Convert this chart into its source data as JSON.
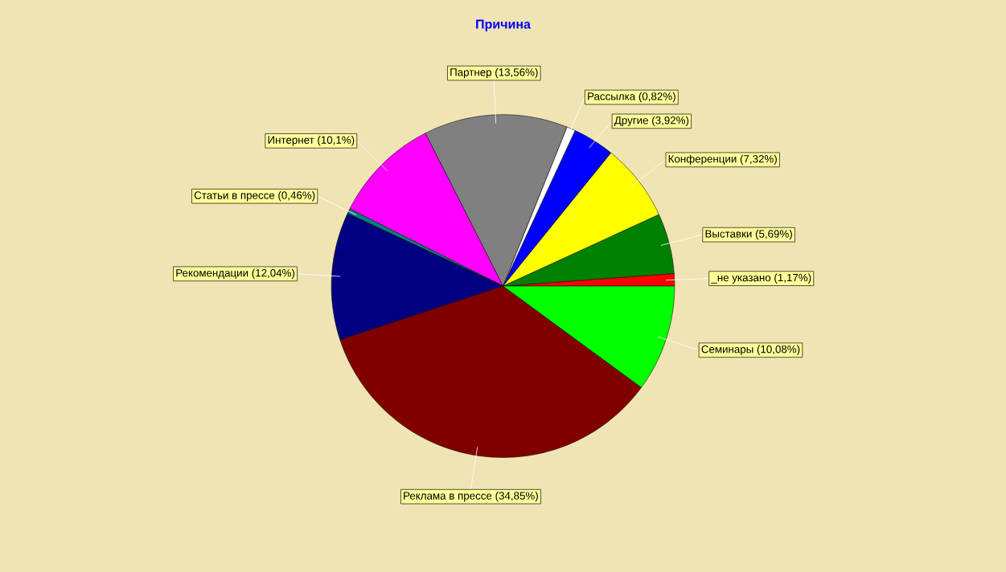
{
  "chart_data": {
    "type": "pie",
    "title": "Причина",
    "categories": [
      "_не указано",
      "Выставки",
      "Конференции",
      "Другие",
      "Рассылка",
      "Партнер",
      "Интернет",
      "Статьи в прессе",
      "Рекомендации",
      "Реклама в прессе",
      "Семинары"
    ],
    "values": [
      1.17,
      5.69,
      7.32,
      3.92,
      0.82,
      13.56,
      10.1,
      0.46,
      12.04,
      34.85,
      10.08
    ],
    "value_labels": [
      "(1,17%)",
      "(5,69%)",
      "(7,32%)",
      "(3,92%)",
      "(0,82%)",
      "(13,56%)",
      "(10,1%)",
      "(0,46%)",
      "(12,04%)",
      "(34,85%)",
      "(10,08%)"
    ],
    "colors": [
      "#ff0000",
      "#008000",
      "#ffff00",
      "#0000ff",
      "#ffffff",
      "#808080",
      "#ff00ff",
      "#008080",
      "#000080",
      "#800000",
      "#00ff00"
    ]
  }
}
